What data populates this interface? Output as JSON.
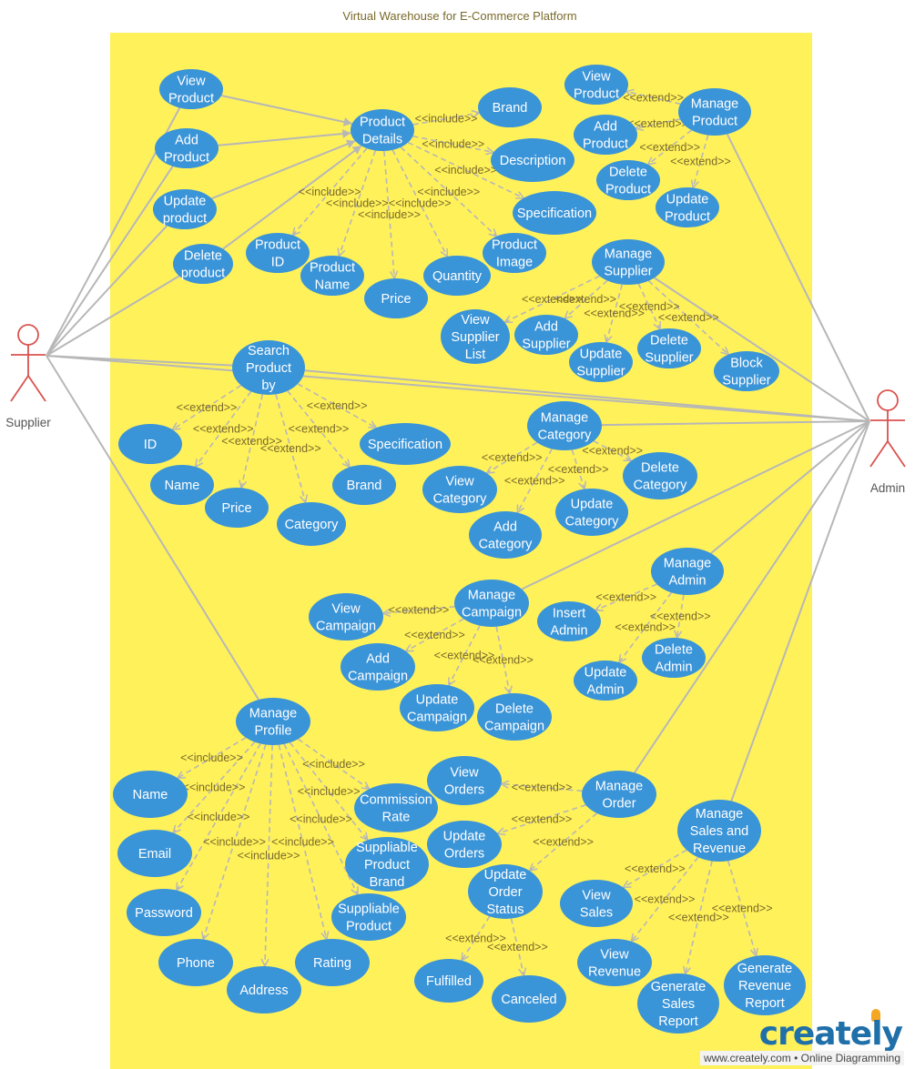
{
  "title": "Virtual Warehouse for E-Commerce Platform",
  "colors": {
    "board": "#fff15a",
    "usecase": "#3a94d8",
    "usecase_text": "#ffffff",
    "actor": "#d9534f",
    "edge": "#b7b7b7",
    "dashed": "#b7b7b7",
    "label": "#7a6a2a"
  },
  "actors": [
    {
      "id": "supplier",
      "label": "Supplier"
    },
    {
      "id": "admin",
      "label": "Admin"
    }
  ],
  "use_cases": [
    {
      "id": "view_product",
      "label": "View\nProduct"
    },
    {
      "id": "add_product",
      "label": "Add\nProduct"
    },
    {
      "id": "update_product_s",
      "label": "Update\nproduct"
    },
    {
      "id": "delete_product_s",
      "label": "Delete\nproduct"
    },
    {
      "id": "product_details",
      "label": "Product\nDetails"
    },
    {
      "id": "brand",
      "label": "Brand"
    },
    {
      "id": "description",
      "label": "Description"
    },
    {
      "id": "specification",
      "label": "Specification"
    },
    {
      "id": "product_image",
      "label": "Product\nImage"
    },
    {
      "id": "quantity",
      "label": "Quantity"
    },
    {
      "id": "price",
      "label": "Price"
    },
    {
      "id": "product_name",
      "label": "Product\nName"
    },
    {
      "id": "product_id",
      "label": "Product\nID"
    },
    {
      "id": "a_view_product",
      "label": "View\nProduct"
    },
    {
      "id": "manage_product",
      "label": "Manage\nProduct"
    },
    {
      "id": "a_add_product",
      "label": "Add\nProduct"
    },
    {
      "id": "a_delete_product",
      "label": "Delete\nProduct"
    },
    {
      "id": "a_update_product",
      "label": "Update\nProduct"
    },
    {
      "id": "manage_supplier",
      "label": "Manage\nSupplier"
    },
    {
      "id": "view_supplier_list",
      "label": "View\nSupplier\nList"
    },
    {
      "id": "add_supplier",
      "label": "Add\nSupplier"
    },
    {
      "id": "update_supplier",
      "label": "Update\nSupplier"
    },
    {
      "id": "delete_supplier",
      "label": "Delete\nSupplier"
    },
    {
      "id": "block_supplier",
      "label": "Block\nSupplier"
    },
    {
      "id": "search_product",
      "label": "Search\nProduct\nby"
    },
    {
      "id": "s_id",
      "label": "ID"
    },
    {
      "id": "s_name",
      "label": "Name"
    },
    {
      "id": "s_price",
      "label": "Price"
    },
    {
      "id": "s_category",
      "label": "Category"
    },
    {
      "id": "s_brand",
      "label": "Brand"
    },
    {
      "id": "s_specification",
      "label": "Specification"
    },
    {
      "id": "manage_category",
      "label": "Manage\nCategory"
    },
    {
      "id": "view_category",
      "label": "View\nCategory"
    },
    {
      "id": "add_category",
      "label": "Add\nCategory"
    },
    {
      "id": "update_category",
      "label": "Update\nCategory"
    },
    {
      "id": "delete_category",
      "label": "Delete\nCategory"
    },
    {
      "id": "manage_admin",
      "label": "Manage\nAdmin"
    },
    {
      "id": "insert_admin",
      "label": "Insert\nAdmin"
    },
    {
      "id": "update_admin",
      "label": "Update\nAdmin"
    },
    {
      "id": "delete_admin",
      "label": "Delete\nAdmin"
    },
    {
      "id": "manage_campaign",
      "label": "Manage\nCampaign"
    },
    {
      "id": "view_campaign",
      "label": "View\nCampaign"
    },
    {
      "id": "add_campaign",
      "label": "Add\nCampaign"
    },
    {
      "id": "update_campaign",
      "label": "Update\nCampaign"
    },
    {
      "id": "delete_campaign",
      "label": "Delete\nCampaign"
    },
    {
      "id": "manage_profile",
      "label": "Manage\nProfile"
    },
    {
      "id": "p_name",
      "label": "Name"
    },
    {
      "id": "p_email",
      "label": "Email"
    },
    {
      "id": "p_password",
      "label": "Password"
    },
    {
      "id": "p_phone",
      "label": "Phone"
    },
    {
      "id": "p_address",
      "label": "Address"
    },
    {
      "id": "p_rating",
      "label": "Rating"
    },
    {
      "id": "supp_product",
      "label": "Suppliable\nProduct"
    },
    {
      "id": "supp_brand",
      "label": "Suppliable\nProduct\nBrand"
    },
    {
      "id": "commission_rate",
      "label": "Commission\nRate"
    },
    {
      "id": "view_orders",
      "label": "View\nOrders"
    },
    {
      "id": "manage_order",
      "label": "Manage\nOrder"
    },
    {
      "id": "update_orders",
      "label": "Update\nOrders"
    },
    {
      "id": "update_order_status",
      "label": "Update\nOrder\nStatus"
    },
    {
      "id": "fulfilled",
      "label": "Fulfilled"
    },
    {
      "id": "canceled",
      "label": "Canceled"
    },
    {
      "id": "manage_sales",
      "label": "Manage\nSales and\nRevenue"
    },
    {
      "id": "view_sales",
      "label": "View\nSales"
    },
    {
      "id": "view_revenue",
      "label": "View\nRevenue"
    },
    {
      "id": "gen_sales",
      "label": "Generate\nSales\nReport"
    },
    {
      "id": "gen_revenue",
      "label": "Generate\nRevenue\nReport"
    }
  ],
  "associations": [
    [
      "supplier",
      "view_product"
    ],
    [
      "supplier",
      "add_product"
    ],
    [
      "supplier",
      "update_product_s"
    ],
    [
      "supplier",
      "delete_product_s"
    ],
    [
      "supplier",
      "search_product"
    ],
    [
      "supplier",
      "manage_profile"
    ],
    [
      "supplier",
      "admin"
    ],
    [
      "admin",
      "manage_product"
    ],
    [
      "admin",
      "manage_supplier"
    ],
    [
      "admin",
      "search_product"
    ],
    [
      "admin",
      "manage_category"
    ],
    [
      "admin",
      "manage_admin"
    ],
    [
      "admin",
      "manage_campaign"
    ],
    [
      "admin",
      "manage_order"
    ],
    [
      "admin",
      "manage_sales"
    ]
  ],
  "solid_arrows": [
    [
      "view_product",
      "product_details"
    ],
    [
      "add_product",
      "product_details"
    ],
    [
      "update_product_s",
      "product_details"
    ],
    [
      "delete_product_s",
      "product_details"
    ]
  ],
  "relations": [
    {
      "from": "product_details",
      "to": "brand",
      "label": "<<include>>"
    },
    {
      "from": "product_details",
      "to": "description",
      "label": "<<include>>"
    },
    {
      "from": "product_details",
      "to": "specification",
      "label": "<<include>>"
    },
    {
      "from": "product_details",
      "to": "product_image",
      "label": "<<include>>"
    },
    {
      "from": "product_details",
      "to": "quantity",
      "label": "<<include>>"
    },
    {
      "from": "product_details",
      "to": "price",
      "label": "<<include>>"
    },
    {
      "from": "product_details",
      "to": "product_name",
      "label": "<<include>>"
    },
    {
      "from": "product_details",
      "to": "product_id",
      "label": "<<include>>"
    },
    {
      "from": "manage_product",
      "to": "a_view_product",
      "label": "<<extend>>"
    },
    {
      "from": "manage_product",
      "to": "a_add_product",
      "label": "<<extend>>"
    },
    {
      "from": "manage_product",
      "to": "a_delete_product",
      "label": "<<extend>>"
    },
    {
      "from": "manage_product",
      "to": "a_update_product",
      "label": "<<extend>>"
    },
    {
      "from": "manage_supplier",
      "to": "view_supplier_list",
      "label": "<<extend>>"
    },
    {
      "from": "manage_supplier",
      "to": "add_supplier",
      "label": "<<extend>>"
    },
    {
      "from": "manage_supplier",
      "to": "update_supplier",
      "label": "<<extend>>"
    },
    {
      "from": "manage_supplier",
      "to": "delete_supplier",
      "label": "<<extend>>"
    },
    {
      "from": "manage_supplier",
      "to": "block_supplier",
      "label": "<<extend>>"
    },
    {
      "from": "search_product",
      "to": "s_id",
      "label": "<<extend>>"
    },
    {
      "from": "search_product",
      "to": "s_name",
      "label": "<<extend>>"
    },
    {
      "from": "search_product",
      "to": "s_price",
      "label": "<<extend>>"
    },
    {
      "from": "search_product",
      "to": "s_category",
      "label": "<<extend>>"
    },
    {
      "from": "search_product",
      "to": "s_brand",
      "label": "<<extend>>"
    },
    {
      "from": "search_product",
      "to": "s_specification",
      "label": "<<extend>>"
    },
    {
      "from": "manage_category",
      "to": "view_category",
      "label": "<<extend>>"
    },
    {
      "from": "manage_category",
      "to": "add_category",
      "label": "<<extend>>"
    },
    {
      "from": "manage_category",
      "to": "update_category",
      "label": "<<extend>>"
    },
    {
      "from": "manage_category",
      "to": "delete_category",
      "label": "<<extend>>"
    },
    {
      "from": "manage_admin",
      "to": "insert_admin",
      "label": "<<extend>>"
    },
    {
      "from": "manage_admin",
      "to": "update_admin",
      "label": "<<extend>>"
    },
    {
      "from": "manage_admin",
      "to": "delete_admin",
      "label": "<<extend>>"
    },
    {
      "from": "manage_campaign",
      "to": "view_campaign",
      "label": "<<extend>>"
    },
    {
      "from": "manage_campaign",
      "to": "add_campaign",
      "label": "<<extend>>"
    },
    {
      "from": "manage_campaign",
      "to": "update_campaign",
      "label": "<<extend>>"
    },
    {
      "from": "manage_campaign",
      "to": "delete_campaign",
      "label": "<<extend>>"
    },
    {
      "from": "manage_profile",
      "to": "p_name",
      "label": "<<include>>"
    },
    {
      "from": "manage_profile",
      "to": "p_email",
      "label": "<<include>>"
    },
    {
      "from": "manage_profile",
      "to": "p_password",
      "label": "<<include>>"
    },
    {
      "from": "manage_profile",
      "to": "p_phone",
      "label": "<<include>>"
    },
    {
      "from": "manage_profile",
      "to": "p_address",
      "label": "<<include>>"
    },
    {
      "from": "manage_profile",
      "to": "p_rating",
      "label": "<<include>>"
    },
    {
      "from": "manage_profile",
      "to": "supp_product",
      "label": "<<include>>"
    },
    {
      "from": "manage_profile",
      "to": "supp_brand",
      "label": "<<include>>"
    },
    {
      "from": "manage_profile",
      "to": "commission_rate",
      "label": "<<include>>"
    },
    {
      "from": "manage_order",
      "to": "view_orders",
      "label": "<<extend>>"
    },
    {
      "from": "manage_order",
      "to": "update_orders",
      "label": "<<extend>>"
    },
    {
      "from": "manage_order",
      "to": "update_order_status",
      "label": "<<extend>>"
    },
    {
      "from": "update_order_status",
      "to": "fulfilled",
      "label": "<<extend>>"
    },
    {
      "from": "update_order_status",
      "to": "canceled",
      "label": "<<extend>>"
    },
    {
      "from": "manage_sales",
      "to": "view_sales",
      "label": "<<extend>>"
    },
    {
      "from": "manage_sales",
      "to": "view_revenue",
      "label": "<<extend>>"
    },
    {
      "from": "manage_sales",
      "to": "gen_sales",
      "label": "<<extend>>"
    },
    {
      "from": "manage_sales",
      "to": "gen_revenue",
      "label": "<<extend>>"
    }
  ],
  "footer": {
    "logo": "creately",
    "url": "www.creately.com • Online Diagramming"
  }
}
